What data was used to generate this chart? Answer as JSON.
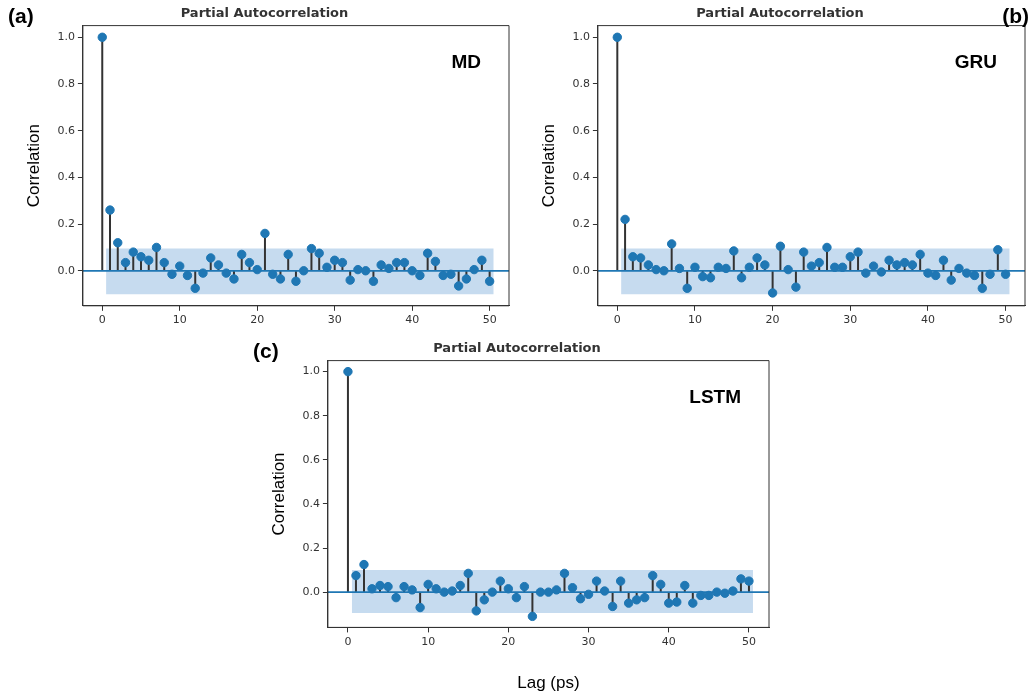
{
  "chart_data": [
    {
      "type": "lollipop",
      "title": "Partial Autocorrelation",
      "ylabel": "Correlation",
      "annotations": [
        "(a)",
        "MD"
      ],
      "marker": "circle",
      "legend": false,
      "grid": false,
      "xlim": [
        -2.5,
        52.5
      ],
      "xticks": [
        0,
        10,
        20,
        30,
        40,
        50
      ],
      "ylim": [
        -0.15,
        1.05
      ],
      "yticks": [
        {
          "value": 0,
          "label": "0.0"
        },
        {
          "value": 0.2,
          "label": "0.2"
        },
        {
          "value": 0.4,
          "label": "0.4"
        },
        {
          "value": 0.6,
          "label": "0.6"
        },
        {
          "value": 0.8,
          "label": "0.8"
        },
        {
          "value": 1,
          "label": "1.0"
        }
      ],
      "ref_lines": [
        {
          "axis": "y",
          "value": 0,
          "color": "#1f77b4"
        }
      ],
      "bands": [
        {
          "axis": "y",
          "from": -0.1,
          "to": 0.095,
          "color": "#c6dbef"
        }
      ],
      "x": [
        0,
        1,
        2,
        3,
        4,
        5,
        6,
        7,
        8,
        9,
        10,
        11,
        12,
        13,
        14,
        15,
        16,
        17,
        18,
        19,
        20,
        21,
        22,
        23,
        24,
        25,
        26,
        27,
        28,
        29,
        30,
        31,
        32,
        33,
        34,
        35,
        36,
        37,
        38,
        39,
        40,
        41,
        42,
        43,
        44,
        45,
        46,
        47,
        48,
        49,
        50
      ],
      "series": [
        {
          "color": "#1f77b4",
          "values": [
            1.0,
            0.26,
            0.12,
            0.035,
            0.08,
            0.06,
            0.045,
            0.1,
            0.035,
            -0.015,
            0.02,
            -0.02,
            -0.075,
            -0.01,
            0.055,
            0.025,
            -0.01,
            -0.035,
            0.07,
            0.035,
            0.005,
            0.16,
            -0.015,
            -0.035,
            0.07,
            -0.045,
            0.0,
            0.095,
            0.075,
            0.015,
            0.045,
            0.035,
            -0.04,
            0.005,
            0.0,
            -0.045,
            0.025,
            0.01,
            0.035,
            0.035,
            0.0,
            -0.02,
            0.075,
            0.04,
            -0.02,
            -0.015,
            -0.065,
            -0.035,
            0.005,
            0.045,
            -0.045
          ]
        }
      ]
    },
    {
      "type": "lollipop",
      "title": "Partial Autocorrelation",
      "ylabel": "Correlation",
      "annotations": [
        "(b)",
        "GRU"
      ],
      "marker": "circle",
      "legend": false,
      "grid": false,
      "xlim": [
        -2.5,
        52.5
      ],
      "xticks": [
        0,
        10,
        20,
        30,
        40,
        50
      ],
      "ylim": [
        -0.15,
        1.05
      ],
      "yticks": [
        {
          "value": 0,
          "label": "0.0"
        },
        {
          "value": 0.2,
          "label": "0.2"
        },
        {
          "value": 0.4,
          "label": "0.4"
        },
        {
          "value": 0.6,
          "label": "0.6"
        },
        {
          "value": 0.8,
          "label": "0.8"
        },
        {
          "value": 1,
          "label": "1.0"
        }
      ],
      "ref_lines": [
        {
          "axis": "y",
          "value": 0,
          "color": "#1f77b4"
        }
      ],
      "bands": [
        {
          "axis": "y",
          "from": -0.1,
          "to": 0.095,
          "color": "#c6dbef"
        }
      ],
      "x": [
        0,
        1,
        2,
        3,
        4,
        5,
        6,
        7,
        8,
        9,
        10,
        11,
        12,
        13,
        14,
        15,
        16,
        17,
        18,
        19,
        20,
        21,
        22,
        23,
        24,
        25,
        26,
        27,
        28,
        29,
        30,
        31,
        32,
        33,
        34,
        35,
        36,
        37,
        38,
        39,
        40,
        41,
        42,
        43,
        44,
        45,
        46,
        47,
        48,
        49,
        50
      ],
      "series": [
        {
          "color": "#1f77b4",
          "values": [
            1.0,
            0.22,
            0.06,
            0.055,
            0.025,
            0.005,
            0.0,
            0.115,
            0.01,
            -0.075,
            0.015,
            -0.025,
            -0.03,
            0.015,
            0.01,
            0.085,
            -0.03,
            0.015,
            0.055,
            0.025,
            -0.095,
            0.105,
            0.005,
            -0.07,
            0.08,
            0.02,
            0.035,
            0.1,
            0.015,
            0.015,
            0.06,
            0.08,
            -0.01,
            0.02,
            -0.005,
            0.045,
            0.025,
            0.035,
            0.025,
            0.07,
            -0.01,
            -0.02,
            0.045,
            -0.04,
            0.01,
            -0.01,
            -0.02,
            -0.075,
            -0.015,
            0.09,
            -0.015
          ]
        }
      ]
    },
    {
      "type": "lollipop",
      "title": "Partial Autocorrelation",
      "ylabel": "Correlation",
      "xlabel": "Lag (ps)",
      "annotations": [
        "(c)",
        "LSTM"
      ],
      "marker": "circle",
      "legend": false,
      "grid": false,
      "xlim": [
        -2.5,
        52.5
      ],
      "xticks": [
        0,
        10,
        20,
        30,
        40,
        50
      ],
      "ylim": [
        -0.16,
        1.05
      ],
      "yticks": [
        {
          "value": 0,
          "label": "0.0"
        },
        {
          "value": 0.2,
          "label": "0.2"
        },
        {
          "value": 0.4,
          "label": "0.4"
        },
        {
          "value": 0.6,
          "label": "0.6"
        },
        {
          "value": 0.8,
          "label": "0.8"
        },
        {
          "value": 1,
          "label": "1.0"
        }
      ],
      "ref_lines": [
        {
          "axis": "y",
          "value": 0,
          "color": "#1f77b4"
        }
      ],
      "bands": [
        {
          "axis": "y",
          "from": -0.095,
          "to": 0.1,
          "color": "#c6dbef"
        }
      ],
      "x": [
        0,
        1,
        2,
        3,
        4,
        5,
        6,
        7,
        8,
        9,
        10,
        11,
        12,
        13,
        14,
        15,
        16,
        17,
        18,
        19,
        20,
        21,
        22,
        23,
        24,
        25,
        26,
        27,
        28,
        29,
        30,
        31,
        32,
        33,
        34,
        35,
        36,
        37,
        38,
        39,
        40,
        41,
        42,
        43,
        44,
        45,
        46,
        47,
        48,
        49,
        50
      ],
      "series": [
        {
          "color": "#1f77b4",
          "values": [
            1.0,
            0.075,
            0.125,
            0.015,
            0.03,
            0.025,
            -0.025,
            0.025,
            0.01,
            -0.07,
            0.035,
            0.015,
            0.0,
            0.005,
            0.03,
            0.085,
            -0.085,
            -0.035,
            0.0,
            0.05,
            0.015,
            -0.025,
            0.025,
            -0.11,
            0.0,
            0.0,
            0.01,
            0.085,
            0.02,
            -0.03,
            -0.01,
            0.05,
            0.005,
            -0.065,
            0.05,
            -0.05,
            -0.035,
            -0.025,
            0.075,
            0.035,
            -0.05,
            -0.045,
            0.03,
            -0.05,
            -0.015,
            -0.015,
            0.0,
            -0.005,
            0.005,
            0.06,
            0.05
          ]
        }
      ]
    }
  ]
}
